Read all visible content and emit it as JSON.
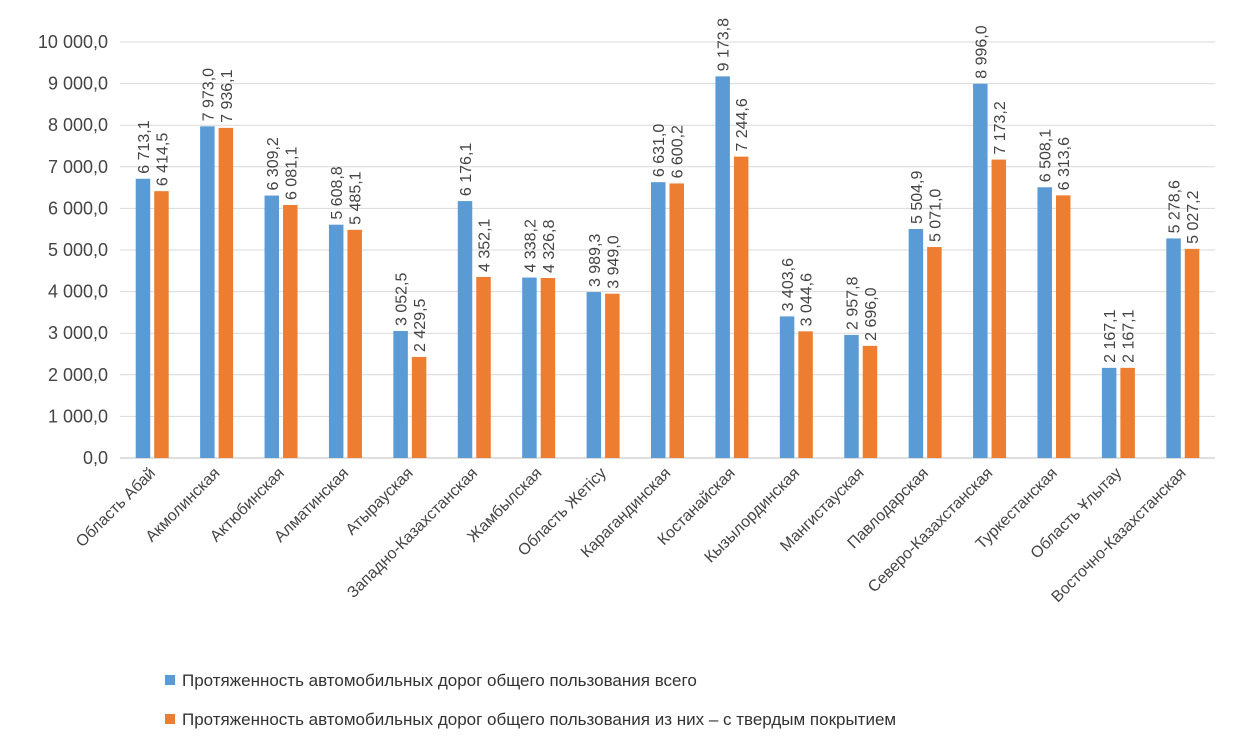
{
  "chart_data": {
    "type": "bar",
    "title": "",
    "xlabel": "",
    "ylabel": "",
    "ylim": [
      0,
      10000
    ],
    "yticks": [
      "0,0",
      "1 000,0",
      "2 000,0",
      "3 000,0",
      "4 000,0",
      "5 000,0",
      "6 000,0",
      "7 000,0",
      "8 000,0",
      "9 000,0",
      "10 000,0"
    ],
    "ytick_values": [
      0,
      1000,
      2000,
      3000,
      4000,
      5000,
      6000,
      7000,
      8000,
      9000,
      10000
    ],
    "grid": true,
    "legend_position": "bottom-left",
    "categories": [
      "Область Абай",
      "Акмолинская",
      "Актюбинская",
      "Алматинская",
      "Атырауская",
      "Западно-Казахстанская",
      "Жамбылская",
      "Область Жетісу",
      "Карагандинская",
      "Костанайская",
      "Кызылординская",
      "Мангистауская",
      "Павлодарская",
      "Северо-Казахстанская",
      "Туркестанская",
      "Область Ұлытау",
      "Восточно-Казахстанская"
    ],
    "series": [
      {
        "name": "Протяженность автомобильных дорог общего пользования всего",
        "color": "#5B9BD5",
        "values": [
          6713.1,
          7973.0,
          6309.2,
          5608.8,
          3052.5,
          6176.1,
          4338.2,
          3989.3,
          6631.0,
          9173.8,
          3403.6,
          2957.8,
          5504.9,
          8996.0,
          6508.1,
          2167.1,
          5278.6
        ],
        "labels": [
          "6 713,1",
          "7 973,0",
          "6 309,2",
          "5 608,8",
          "3 052,5",
          "6 176,1",
          "4 338,2",
          "3 989,3",
          "6 631,0",
          "9 173,8",
          "3 403,6",
          "2 957,8",
          "5 504,9",
          "8 996,0",
          "6 508,1",
          "2 167,1",
          "5 278,6"
        ]
      },
      {
        "name": "Протяженность автомобильных дорог общего пользования из них – с твердым покрытием",
        "color": "#ED7D31",
        "values": [
          6414.5,
          7936.1,
          6081.1,
          5485.1,
          2429.5,
          4352.1,
          4326.8,
          3949.0,
          6600.2,
          7244.6,
          3044.6,
          2696.0,
          5071.0,
          7173.2,
          6313.6,
          2167.1,
          5027.2
        ],
        "labels": [
          "6 414,5",
          "7 936,1",
          "6 081,1",
          "5 485,1",
          "2 429,5",
          "4 352,1",
          "4 326,8",
          "3 949,0",
          "6 600,2",
          "7 244,6",
          "3 044,6",
          "2 696,0",
          "5 071,0",
          "7 173,2",
          "6 313,6",
          "2 167,1",
          "5 027,2"
        ]
      }
    ]
  }
}
